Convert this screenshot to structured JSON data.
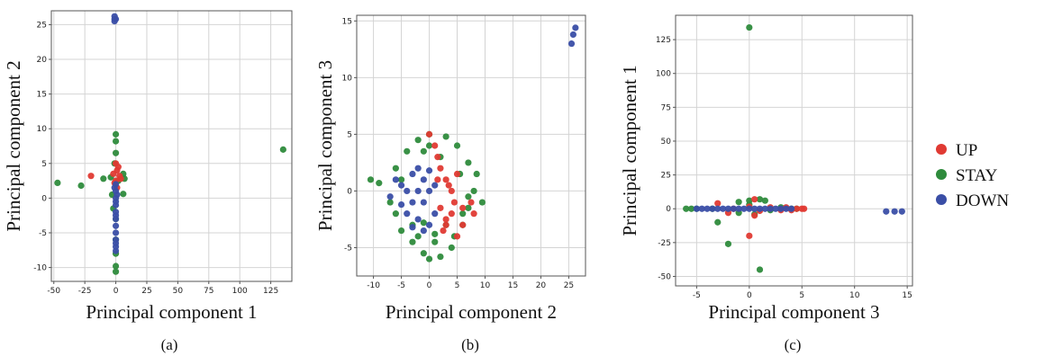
{
  "legend": {
    "entries": [
      {
        "label": "UP",
        "color": "#e03a33"
      },
      {
        "label": "STAY",
        "color": "#2e8b3c"
      },
      {
        "label": "DOWN",
        "color": "#3a4ea6"
      }
    ]
  },
  "chart_data": [
    {
      "type": "scatter",
      "caption": "(a)",
      "xlabel": "Principal component 1",
      "ylabel": "Principal component 2",
      "xlim": [
        -52,
        142
      ],
      "ylim": [
        -12,
        27
      ],
      "xticks": [
        -50,
        -25,
        0,
        25,
        50,
        75,
        100,
        125
      ],
      "yticks": [
        -10,
        -5,
        0,
        5,
        10,
        15,
        20,
        25
      ],
      "grid": true,
      "series": [
        {
          "name": "STAY",
          "points": [
            [
              -47,
              2.2
            ],
            [
              -28,
              1.8
            ],
            [
              -10,
              2.8
            ],
            [
              135,
              7
            ],
            [
              0,
              9.2
            ],
            [
              0,
              8.2
            ],
            [
              0,
              6.5
            ],
            [
              -1,
              5
            ],
            [
              6,
              3.5
            ],
            [
              7,
              2.8
            ],
            [
              6,
              0.6
            ],
            [
              0,
              -9.8
            ],
            [
              0,
              -10.6
            ],
            [
              0,
              -8
            ],
            [
              -2,
              -1.5
            ],
            [
              -3,
              0.5
            ],
            [
              -4,
              3
            ],
            [
              2,
              2.5
            ],
            [
              0,
              -3
            ],
            [
              0,
              -6
            ]
          ]
        },
        {
          "name": "UP",
          "points": [
            [
              -20,
              3.2
            ],
            [
              -2,
              3.5
            ],
            [
              0,
              5
            ],
            [
              2,
              4.5
            ],
            [
              3,
              3.2
            ],
            [
              -1,
              2.2
            ],
            [
              1,
              1.5
            ],
            [
              4,
              2.8
            ],
            [
              0,
              2.5
            ],
            [
              1,
              4
            ]
          ]
        },
        {
          "name": "DOWN",
          "points": [
            [
              -1,
              26.2
            ],
            [
              -1,
              25.8
            ],
            [
              -1,
              25.5
            ],
            [
              0,
              25.8
            ],
            [
              0,
              1
            ],
            [
              0,
              0
            ],
            [
              0,
              -1
            ],
            [
              0,
              -2
            ],
            [
              0,
              -3
            ],
            [
              0,
              -4
            ],
            [
              0,
              -5
            ],
            [
              0,
              -6
            ],
            [
              0,
              -7
            ],
            [
              0,
              -7.6
            ],
            [
              0,
              -6.5
            ],
            [
              0,
              -0.5
            ],
            [
              0,
              -2.5
            ],
            [
              -1,
              1.5
            ],
            [
              1,
              0.5
            ],
            [
              0,
              2
            ]
          ]
        }
      ]
    },
    {
      "type": "scatter",
      "caption": "(b)",
      "xlabel": "Principal component 2",
      "ylabel": "Principal component 3",
      "xlim": [
        -13,
        28
      ],
      "ylim": [
        -7.5,
        15.5
      ],
      "xticks": [
        -10,
        -5,
        0,
        5,
        10,
        15,
        20,
        25
      ],
      "yticks": [
        -5,
        0,
        5,
        10,
        15
      ],
      "grid": true,
      "series": [
        {
          "name": "STAY",
          "points": [
            [
              -10.5,
              1
            ],
            [
              -9,
              0.7
            ],
            [
              -7,
              -1
            ],
            [
              -6,
              -2
            ],
            [
              -5,
              -3.5
            ],
            [
              -3,
              -4.5
            ],
            [
              -1,
              -5.5
            ],
            [
              0,
              -6
            ],
            [
              2,
              -5.8
            ],
            [
              4,
              -5
            ],
            [
              6,
              -3
            ],
            [
              7,
              -1.5
            ],
            [
              8,
              0
            ],
            [
              9.5,
              -1
            ],
            [
              8.5,
              1.5
            ],
            [
              7,
              2.5
            ],
            [
              5,
              4
            ],
            [
              3,
              4.8
            ],
            [
              0,
              5
            ],
            [
              -2,
              4.5
            ],
            [
              -4,
              3.5
            ],
            [
              -6,
              2
            ],
            [
              -3,
              -3
            ],
            [
              1,
              -4.5
            ],
            [
              -1,
              3.5
            ],
            [
              2,
              3
            ],
            [
              3,
              -3
            ],
            [
              -5,
              1
            ],
            [
              6,
              -2
            ],
            [
              5.5,
              1.5
            ],
            [
              4.5,
              -4
            ],
            [
              -2,
              -4
            ],
            [
              0,
              4
            ],
            [
              1,
              -3.8
            ],
            [
              -1,
              -2.8
            ],
            [
              7,
              -0.5
            ]
          ]
        },
        {
          "name": "UP",
          "points": [
            [
              0,
              5
            ],
            [
              1,
              4
            ],
            [
              1.5,
              3
            ],
            [
              2,
              2
            ],
            [
              3,
              1
            ],
            [
              4,
              0
            ],
            [
              4.5,
              -1
            ],
            [
              4,
              -2
            ],
            [
              3,
              -3
            ],
            [
              2.5,
              -3.5
            ],
            [
              5,
              -4
            ],
            [
              6,
              -1.5
            ],
            [
              7.5,
              -1
            ],
            [
              2,
              -1.5
            ],
            [
              3.5,
              0.5
            ],
            [
              1.5,
              1
            ],
            [
              5,
              1.5
            ],
            [
              3,
              -2.5
            ],
            [
              8,
              -2
            ],
            [
              6,
              -3
            ]
          ]
        },
        {
          "name": "DOWN",
          "points": [
            [
              -4,
              -2
            ],
            [
              -5,
              0.5
            ],
            [
              -3,
              1.5
            ],
            [
              -2,
              2
            ],
            [
              -1,
              1
            ],
            [
              0,
              0
            ],
            [
              -1,
              -1
            ],
            [
              -2,
              -2.5
            ],
            [
              0,
              -3
            ],
            [
              1,
              -2
            ],
            [
              1,
              0.5
            ],
            [
              0,
              1.8
            ],
            [
              -6,
              1
            ],
            [
              -7,
              -0.5
            ],
            [
              -3,
              -1
            ],
            [
              -4,
              0
            ],
            [
              -2,
              0
            ],
            [
              -5,
              -1.2
            ],
            [
              -1,
              -3.5
            ],
            [
              -3,
              -3.2
            ],
            [
              25.5,
              13
            ],
            [
              25.8,
              13.8
            ],
            [
              26.2,
              14.4
            ]
          ]
        }
      ]
    },
    {
      "type": "scatter",
      "caption": "(c)",
      "xlabel": "Principal component 3",
      "ylabel": "Principal component 1",
      "xlim": [
        -7,
        15.5
      ],
      "ylim": [
        -57,
        143
      ],
      "xticks": [
        -5,
        0,
        5,
        10,
        15
      ],
      "yticks": [
        -50,
        -25,
        0,
        25,
        50,
        75,
        100,
        125
      ],
      "grid": true,
      "series": [
        {
          "name": "STAY",
          "points": [
            [
              0,
              134
            ],
            [
              1,
              -45
            ],
            [
              -2,
              -26
            ],
            [
              -3,
              -10
            ],
            [
              -6,
              0
            ],
            [
              -5.5,
              0
            ],
            [
              -5,
              0
            ],
            [
              0,
              6
            ],
            [
              1,
              7
            ],
            [
              1.5,
              6
            ],
            [
              -1,
              5
            ],
            [
              3,
              1
            ],
            [
              2,
              -1
            ],
            [
              -1,
              -3
            ],
            [
              4,
              0
            ],
            [
              4.5,
              0
            ],
            [
              -3.5,
              0
            ],
            [
              0,
              3
            ],
            [
              0.5,
              -4
            ]
          ]
        },
        {
          "name": "UP",
          "points": [
            [
              0,
              -20
            ],
            [
              -3,
              4
            ],
            [
              -2,
              -3
            ],
            [
              0.5,
              -5
            ],
            [
              2,
              1
            ],
            [
              3,
              -1
            ],
            [
              3.5,
              1
            ],
            [
              4,
              -1
            ],
            [
              4.5,
              0
            ],
            [
              5,
              0
            ],
            [
              5.2,
              0
            ],
            [
              -1.5,
              0
            ],
            [
              1,
              -1.5
            ],
            [
              0,
              1.5
            ],
            [
              0.5,
              7
            ]
          ]
        },
        {
          "name": "DOWN",
          "points": [
            [
              -5,
              0
            ],
            [
              -4.5,
              0
            ],
            [
              -4,
              0
            ],
            [
              -3.5,
              0
            ],
            [
              -3,
              0
            ],
            [
              -2.5,
              0
            ],
            [
              -2,
              0
            ],
            [
              -1.5,
              0
            ],
            [
              -1,
              0
            ],
            [
              -0.5,
              0
            ],
            [
              0,
              0
            ],
            [
              0.5,
              0
            ],
            [
              1,
              0
            ],
            [
              1.5,
              0
            ],
            [
              2,
              0
            ],
            [
              2.5,
              0
            ],
            [
              3,
              0
            ],
            [
              3.5,
              0
            ],
            [
              4,
              0
            ],
            [
              13,
              -2
            ],
            [
              13.8,
              -2
            ],
            [
              14.5,
              -2
            ]
          ]
        }
      ]
    }
  ]
}
